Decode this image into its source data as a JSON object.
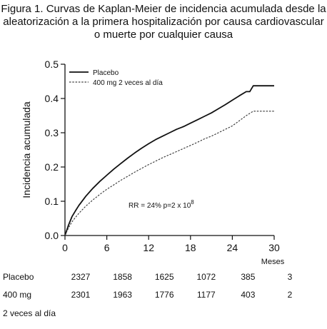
{
  "title_lines": [
    "Figura 1. Curvas de Kaplan-Meier de incidencia acumulada desde la",
    "aleatorización a la primera hospitalización por causa cardiovascular",
    "o muerte por cualquier causa"
  ],
  "chart_data": {
    "type": "line",
    "title": "Figura 1. Curvas de Kaplan-Meier de incidencia acumulada desde la aleatorización a la primera hospitalización por causa cardiovascular o muerte por cualquier causa",
    "xlabel": "Meses",
    "ylabel": "Incidencia acumulada",
    "xlim": [
      0,
      30
    ],
    "ylim": [
      0,
      0.5
    ],
    "xticks": [
      0,
      6,
      12,
      18,
      24,
      30
    ],
    "xtick_labels": [
      "0",
      "6",
      "12",
      "18",
      "24",
      "30"
    ],
    "yticks": [
      0,
      0.1,
      0.2,
      0.3,
      0.4,
      0.5
    ],
    "ytick_labels": [
      "0.0",
      "0.1",
      "0.2",
      "0.3",
      "0.4",
      "0.5"
    ],
    "grid": false,
    "legend_position": "top-left",
    "annotation": {
      "text": "RR = 24% p=2 x 10",
      "superscript": "8"
    },
    "series": [
      {
        "name": "Placebo",
        "style": "solid",
        "x": [
          0,
          0.5,
          1,
          1.5,
          2,
          3,
          4,
          5,
          6,
          7,
          8,
          9,
          10,
          11,
          12,
          13,
          14,
          15,
          16,
          17,
          18,
          19,
          20,
          21,
          22,
          23,
          24,
          25,
          26,
          26.5,
          27,
          28,
          29,
          30
        ],
        "y": [
          0,
          0.03,
          0.055,
          0.072,
          0.088,
          0.115,
          0.138,
          0.158,
          0.176,
          0.194,
          0.21,
          0.226,
          0.241,
          0.255,
          0.268,
          0.28,
          0.29,
          0.3,
          0.31,
          0.318,
          0.328,
          0.338,
          0.348,
          0.358,
          0.37,
          0.382,
          0.395,
          0.408,
          0.42,
          0.42,
          0.437,
          0.437,
          0.437,
          0.437
        ]
      },
      {
        "name": "400 mg 2 veces al día",
        "style": "dashed",
        "x": [
          0,
          0.5,
          1,
          1.5,
          2,
          3,
          4,
          5,
          6,
          7,
          8,
          9,
          10,
          11,
          12,
          13,
          14,
          15,
          16,
          17,
          18,
          19,
          20,
          21,
          22,
          23,
          24,
          25,
          26,
          27,
          28,
          29,
          30
        ],
        "y": [
          0,
          0.022,
          0.04,
          0.053,
          0.065,
          0.086,
          0.104,
          0.12,
          0.135,
          0.148,
          0.161,
          0.173,
          0.185,
          0.196,
          0.207,
          0.217,
          0.227,
          0.236,
          0.245,
          0.254,
          0.263,
          0.272,
          0.282,
          0.29,
          0.3,
          0.31,
          0.32,
          0.335,
          0.35,
          0.363,
          0.363,
          0.363,
          0.363
        ]
      }
    ]
  },
  "risk_table": {
    "times": [
      0,
      6,
      12,
      18,
      24,
      30
    ],
    "rows": [
      {
        "label": "Placebo",
        "values": [
          "2327",
          "1858",
          "1625",
          "1072",
          "385",
          "3"
        ]
      },
      {
        "label": "400 mg",
        "values": [
          "2301",
          "1963",
          "1776",
          "1177",
          "403",
          "2"
        ]
      }
    ],
    "footnote": "2 veces al día"
  }
}
